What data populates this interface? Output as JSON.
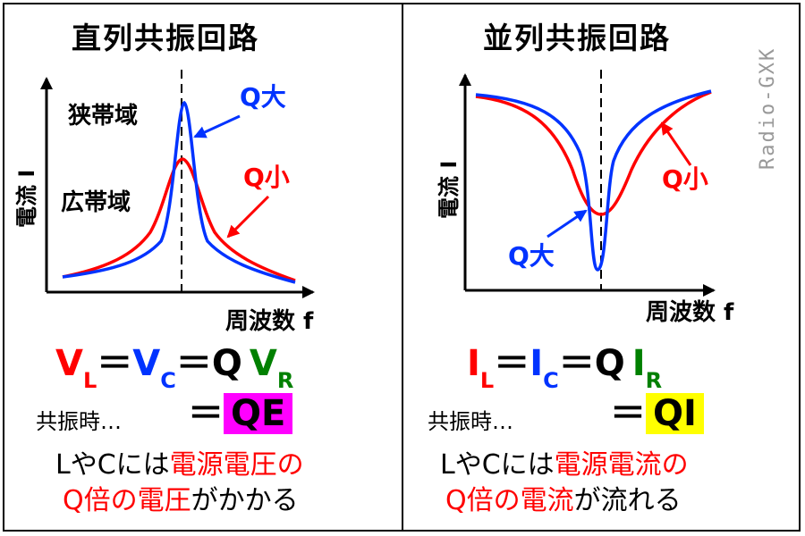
{
  "left": {
    "title": "直列共振回路",
    "ylabel": "電流 I",
    "xlabel": "周波数 f",
    "narrow_label": "狭帯域",
    "wide_label": "広帯域",
    "q_high_label": "Q大",
    "q_low_label": "Q小",
    "eq1": {
      "a": "V",
      "a_sub": "L",
      "eq1": "＝",
      "b": "V",
      "b_sub": "C",
      "eq2": "＝Q",
      "c": "V",
      "c_sub": "R"
    },
    "resonance_label": "共振時…",
    "eq2": {
      "eq": "＝",
      "box": "QE",
      "box_color": "#ff00ff"
    },
    "desc_line1_black": "LやCには",
    "desc_line1_red": "電源電圧の",
    "desc_line2_red": "Q倍の電圧",
    "desc_line2_black": "がかかる"
  },
  "right": {
    "title": "並列共振回路",
    "ylabel": "電流 I",
    "xlabel": "周波数 f",
    "q_high_label": "Q大",
    "q_low_label": "Q小",
    "eq1": {
      "a": "I",
      "a_sub": "L",
      "eq1": "＝",
      "b": "I",
      "b_sub": "C",
      "eq2": "＝Q",
      "c": "I",
      "c_sub": "R"
    },
    "resonance_label": "共振時…",
    "eq2": {
      "eq": "＝",
      "box": "QI",
      "box_color": "#ffff00"
    },
    "desc_line1_black": "LやCには",
    "desc_line1_red": "電源電流の",
    "desc_line2_red": "Q倍の電流",
    "desc_line2_black": "が流れる"
  },
  "watermark": "Radio-GXK",
  "colors": {
    "q_high": "#0033ff",
    "q_low": "#ff0000",
    "red": "#ff0000",
    "blue": "#0033ff",
    "green": "#008000"
  }
}
